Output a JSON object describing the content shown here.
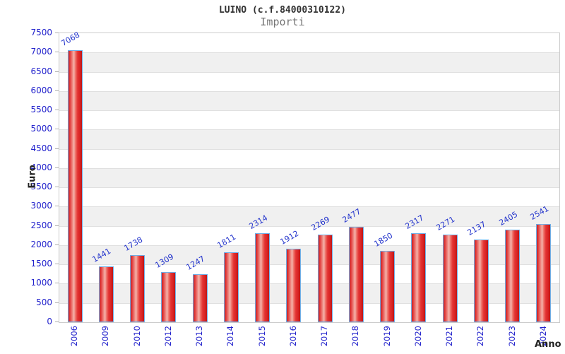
{
  "header": {
    "title": "LUINO (c.f.84000310122)",
    "subtitle": "Importi"
  },
  "chart_data": {
    "type": "bar",
    "title": "LUINO (c.f.84000310122)",
    "subtitle": "Importi",
    "xlabel": "Anno",
    "ylabel": "Euro",
    "categories": [
      "2006",
      "2009",
      "2010",
      "2012",
      "2013",
      "2014",
      "2015",
      "2016",
      "2017",
      "2018",
      "2019",
      "2020",
      "2021",
      "2022",
      "2023",
      "2024"
    ],
    "values": [
      7068,
      1441,
      1738,
      1309,
      1247,
      1811,
      2314,
      1912,
      2269,
      2477,
      1850,
      2317,
      2271,
      2137,
      2405,
      2541
    ],
    "ylim": [
      0,
      7500
    ],
    "ytick_step": 500,
    "yticks": [
      0,
      500,
      1000,
      1500,
      2000,
      2500,
      3000,
      3500,
      4000,
      4500,
      5000,
      5500,
      6000,
      6500,
      7000,
      7500
    ],
    "grid": "horizontal alternating stripes with gridlines every 500",
    "legend_position": "none",
    "bar_labels_shown": true,
    "bar_label_rotation_deg": -30,
    "x_label_rotation_deg": -90
  },
  "colors": {
    "bar_border": "#6fb0e8",
    "bar_red_dark": "#bd1515",
    "bar_red_main": "#e33232",
    "bar_red_light": "#f5b5ad",
    "tick_label_blue": "#2222cc",
    "value_label_blue": "#2233cc",
    "band_dark": "#f0f0f0",
    "band_light": "#ffffff",
    "grid_line": "#e0e0e0",
    "plot_border": "#cccccc",
    "title_color": "#333333",
    "subtitle_color": "#757575",
    "axis_title_color": "#222222"
  }
}
